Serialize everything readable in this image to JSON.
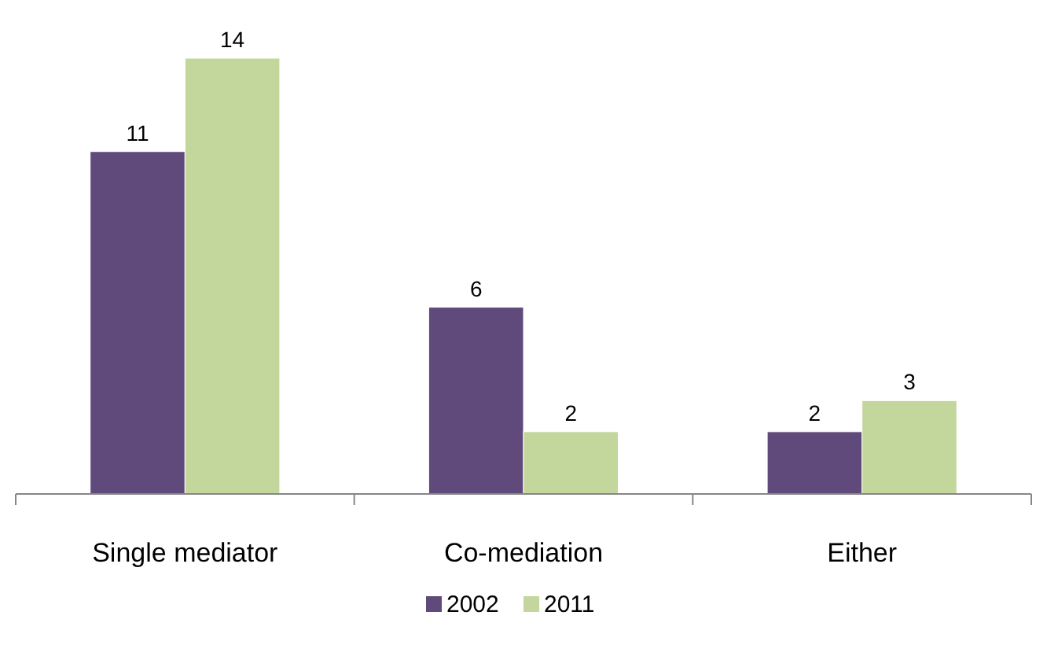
{
  "chart_data": {
    "type": "bar",
    "categories": [
      "Single mediator",
      "Co-mediation",
      "Either"
    ],
    "series": [
      {
        "name": "2002",
        "color": "#604a7b",
        "values": [
          11,
          6,
          2
        ]
      },
      {
        "name": "2011",
        "color": "#c3d69b",
        "values": [
          14,
          2,
          3
        ]
      }
    ],
    "data_labels": true,
    "legend": "bottom",
    "grid": false
  }
}
